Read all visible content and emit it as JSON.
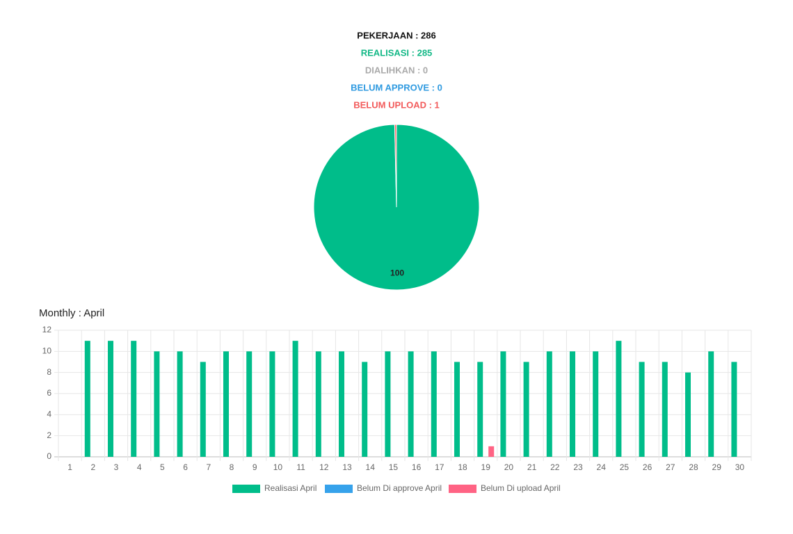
{
  "chart_data": [
    {
      "type": "pie",
      "summary_lines": [
        {
          "text": "PEKERJAAN : 286",
          "color": "#111111"
        },
        {
          "text": "REALISASI : 285",
          "color": "#12b886"
        },
        {
          "text": "DIALIHKAN : 0",
          "color": "#aaaaaa"
        },
        {
          "text": "BELUM APPROVE : 0",
          "color": "#2f9ae0"
        },
        {
          "text": "BELUM UPLOAD : 1",
          "color": "#f25a5a"
        }
      ],
      "values": [
        99.65,
        0.35
      ],
      "value_labels": [
        "100",
        null
      ],
      "colors": [
        "#00bd8a",
        "#ff5c5c"
      ]
    },
    {
      "type": "bar",
      "title": "Monthly : April",
      "categories": [
        "1",
        "2",
        "3",
        "4",
        "5",
        "6",
        "7",
        "8",
        "9",
        "10",
        "11",
        "12",
        "13",
        "14",
        "15",
        "16",
        "17",
        "18",
        "19",
        "20",
        "21",
        "22",
        "23",
        "24",
        "25",
        "26",
        "27",
        "28",
        "29",
        "30"
      ],
      "series": [
        {
          "name": "Realisasi April",
          "color": "#00bd8a",
          "values": [
            0,
            11,
            11,
            11,
            10,
            10,
            9,
            10,
            10,
            10,
            11,
            10,
            10,
            9,
            10,
            10,
            10,
            9,
            9,
            10,
            9,
            10,
            10,
            10,
            11,
            9,
            9,
            8,
            10,
            9
          ]
        },
        {
          "name": "Belum Di approve April",
          "color": "#36a2eb",
          "values": [
            0,
            0,
            0,
            0,
            0,
            0,
            0,
            0,
            0,
            0,
            0,
            0,
            0,
            0,
            0,
            0,
            0,
            0,
            0,
            0,
            0,
            0,
            0,
            0,
            0,
            0,
            0,
            0,
            0,
            0
          ]
        },
        {
          "name": "Belum Di upload April",
          "color": "#ff6384",
          "values": [
            0,
            0,
            0,
            0,
            0,
            0,
            0,
            0,
            0,
            0,
            0,
            0,
            0,
            0,
            0,
            0,
            0,
            0,
            1,
            0,
            0,
            0,
            0,
            0,
            0,
            0,
            0,
            0,
            0,
            0
          ]
        }
      ],
      "ylim": [
        0,
        12
      ],
      "yticks": [
        0,
        2,
        4,
        6,
        8,
        10,
        12
      ],
      "grid": true,
      "legend": "bottom"
    }
  ]
}
